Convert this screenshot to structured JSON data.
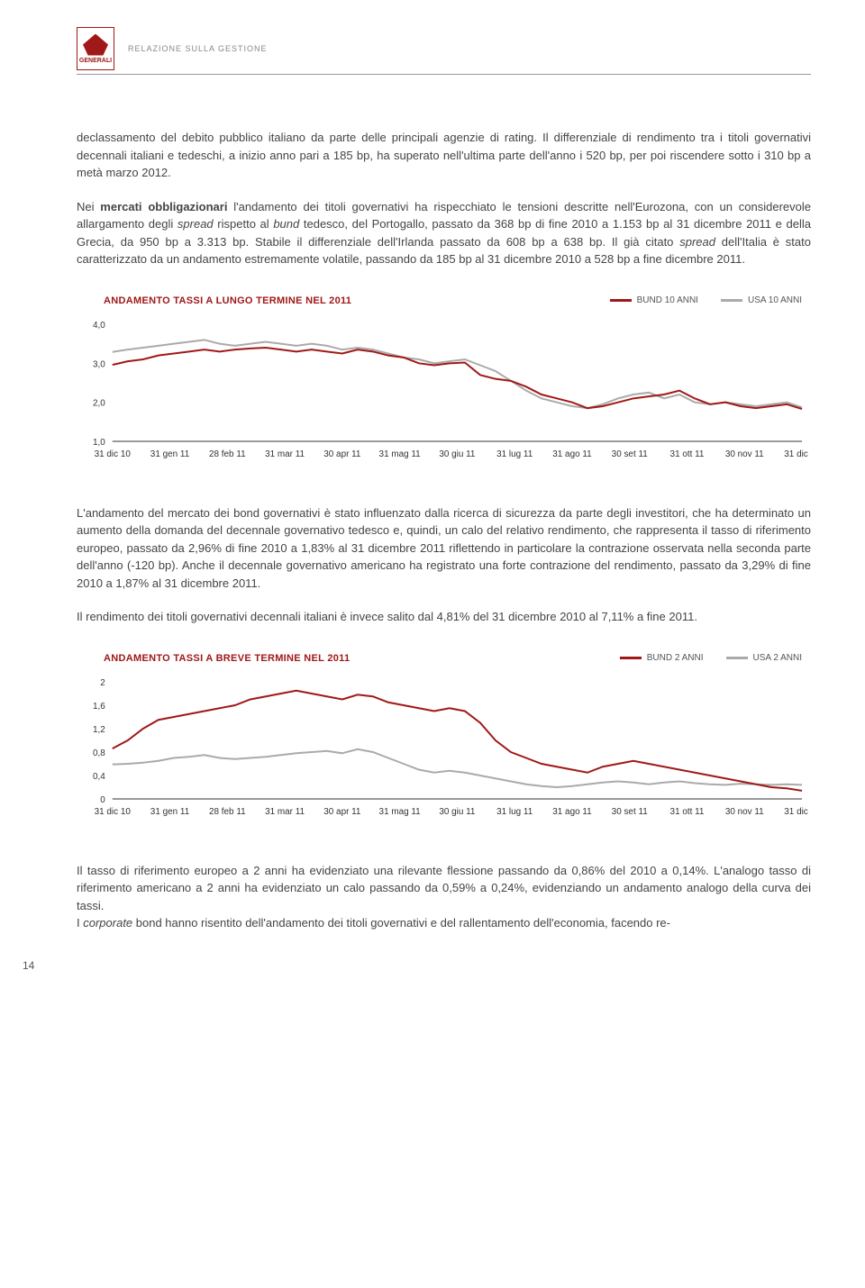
{
  "header": {
    "logo_text": "GENERALI",
    "section_title": "RELAZIONE SULLA GESTIONE"
  },
  "paragraphs": {
    "p1_pre": "declassamento del debito pubblico italiano da parte delle principali agenzie di rating. Il differenziale di rendimento tra i titoli governativi decennali italiani e tedeschi, a inizio anno pari a 185 bp, ha superato nell'ultima parte dell'anno i 520 bp, per poi riscendere sotto i 310 bp a metà marzo 2012.",
    "p2_html": "Nei <b>mercati obbligazionari</b> l'andamento dei titoli governativi ha rispecchiato le tensioni descritte nell'Eurozona, con un considerevole allargamento degli <i>spread</i> rispetto al <i>bund</i> tedesco, del Portogallo, passato da 368 bp di fine 2010 a 1.153 bp al 31 dicembre 2011 e della Grecia, da 950 bp a 3.313 bp. Stabile il differenziale dell'Irlanda passato da 608 bp a 638 bp. Il già citato <i>spread</i> dell'Italia è stato caratterizzato da un andamento estremamente volatile, passando da 185 bp al 31 dicembre 2010 a 528 bp a fine dicembre 2011.",
    "p3": "L'andamento del mercato dei bond governativi è stato influenzato dalla ricerca di sicurezza da parte degli investitori, che ha determinato un aumento della domanda del decennale governativo tedesco e, quindi, un calo del relativo rendimento, che rappresenta il tasso di riferimento europeo, passato da 2,96% di fine 2010 a 1,83% al 31 dicembre 2011 riflettendo in particolare la contrazione osservata nella seconda parte dell'anno (-120 bp). Anche il decennale governativo americano ha registrato una forte contrazione del rendimento, passato da 3,29% di fine 2010 a 1,87% al 31 dicembre 2011.",
    "p4": "Il rendimento dei titoli governativi decennali italiani è invece salito dal 4,81% del 31 dicembre 2010 al 7,11% a fine 2011.",
    "p5_html": "Il tasso di riferimento europeo a 2 anni ha evidenziato una rilevante flessione passando da 0,86% del 2010 a 0,14%. L'analogo tasso di riferimento americano a 2 anni ha evidenziato un calo passando da 0,59% a 0,24%, evidenziando un andamento analogo della curva dei tassi.<br>I <i>corporate</i> bond hanno risentito dell'andamento dei titoli governativi e del rallentamento dell'economia, facendo re-"
  },
  "chart1": {
    "title": "ANDAMENTO TASSI A LUNGO TERMINE NEL 2011",
    "legend": [
      {
        "label": "BUND 10 ANNI",
        "color": "#a01818"
      },
      {
        "label": "USA 10 ANNI",
        "color": "#aaaaaa"
      }
    ],
    "ylim": [
      1.0,
      4.0
    ],
    "yticks": [
      "4,0",
      "3,0",
      "2,0",
      "1,0"
    ],
    "xticks": [
      "31 dic 10",
      "31 gen 11",
      "28 feb 11",
      "31 mar 11",
      "30 apr 11",
      "31 mag 11",
      "30 giu 11",
      "31 lug 11",
      "31 ago 11",
      "30 set 11",
      "31 ott 11",
      "30 nov 11",
      "31 dic 11"
    ],
    "series": {
      "bund": [
        2.96,
        3.05,
        3.1,
        3.2,
        3.25,
        3.3,
        3.35,
        3.3,
        3.35,
        3.38,
        3.4,
        3.35,
        3.3,
        3.35,
        3.3,
        3.25,
        3.35,
        3.3,
        3.2,
        3.15,
        3.0,
        2.95,
        3.0,
        3.02,
        2.7,
        2.6,
        2.55,
        2.4,
        2.2,
        2.1,
        2.0,
        1.85,
        1.9,
        2.0,
        2.1,
        2.15,
        2.2,
        2.3,
        2.1,
        1.95,
        2.0,
        1.9,
        1.85,
        1.9,
        1.95,
        1.83
      ],
      "usa": [
        3.29,
        3.35,
        3.4,
        3.45,
        3.5,
        3.55,
        3.6,
        3.5,
        3.45,
        3.5,
        3.55,
        3.5,
        3.45,
        3.5,
        3.45,
        3.35,
        3.4,
        3.35,
        3.25,
        3.15,
        3.1,
        3.0,
        3.05,
        3.1,
        2.95,
        2.8,
        2.55,
        2.3,
        2.1,
        2.0,
        1.9,
        1.85,
        1.95,
        2.1,
        2.2,
        2.25,
        2.1,
        2.2,
        2.0,
        1.95,
        2.0,
        1.95,
        1.9,
        1.95,
        2.0,
        1.87
      ],
      "color_bund": "#a01818",
      "color_usa": "#aaaaaa"
    },
    "axis_color": "#333333",
    "tick_fontsize": 10
  },
  "chart2": {
    "title": "ANDAMENTO TASSI A BREVE TERMINE NEL 2011",
    "legend": [
      {
        "label": "BUND 2 ANNI",
        "color": "#a01818"
      },
      {
        "label": "USA 2 ANNI",
        "color": "#aaaaaa"
      }
    ],
    "ylim": [
      0,
      2.0
    ],
    "yticks": [
      "2",
      "1,6",
      "1,2",
      "0,8",
      "0,4",
      "0"
    ],
    "xticks": [
      "31 dic 10",
      "31 gen 11",
      "28 feb 11",
      "31 mar 11",
      "30 apr 11",
      "31 mag 11",
      "30 giu 11",
      "31 lug 11",
      "31 ago 11",
      "30 set 11",
      "31 ott 11",
      "30 nov 11",
      "31 dic 11"
    ],
    "series": {
      "bund": [
        0.86,
        1.0,
        1.2,
        1.35,
        1.4,
        1.45,
        1.5,
        1.55,
        1.6,
        1.7,
        1.75,
        1.8,
        1.85,
        1.8,
        1.75,
        1.7,
        1.78,
        1.75,
        1.65,
        1.6,
        1.55,
        1.5,
        1.55,
        1.5,
        1.3,
        1.0,
        0.8,
        0.7,
        0.6,
        0.55,
        0.5,
        0.45,
        0.55,
        0.6,
        0.65,
        0.6,
        0.55,
        0.5,
        0.45,
        0.4,
        0.35,
        0.3,
        0.25,
        0.2,
        0.18,
        0.14
      ],
      "usa": [
        0.59,
        0.6,
        0.62,
        0.65,
        0.7,
        0.72,
        0.75,
        0.7,
        0.68,
        0.7,
        0.72,
        0.75,
        0.78,
        0.8,
        0.82,
        0.78,
        0.85,
        0.8,
        0.7,
        0.6,
        0.5,
        0.45,
        0.48,
        0.45,
        0.4,
        0.35,
        0.3,
        0.25,
        0.22,
        0.2,
        0.22,
        0.25,
        0.28,
        0.3,
        0.28,
        0.25,
        0.28,
        0.3,
        0.27,
        0.25,
        0.24,
        0.26,
        0.25,
        0.24,
        0.25,
        0.24
      ],
      "color_bund": "#a01818",
      "color_usa": "#aaaaaa"
    },
    "axis_color": "#333333",
    "tick_fontsize": 10
  },
  "page_number": "14"
}
